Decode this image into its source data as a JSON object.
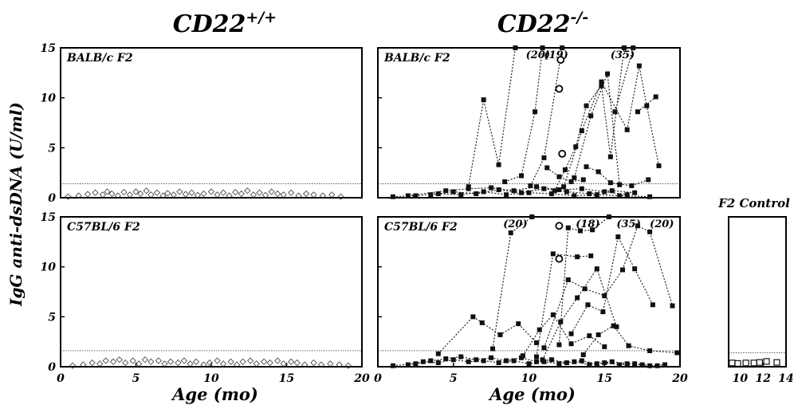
{
  "figure": {
    "col_titles": [
      {
        "base": "CD22",
        "sup": "+/+"
      },
      {
        "base": "CD22",
        "sup": "-/-"
      }
    ],
    "ylabel": "IgG anti-dsDNA (U/ml)",
    "xlabel": "Age (mo)",
    "control_title": "F2 Control"
  },
  "chart_data": [
    {
      "type": "scatter",
      "name": "wt-balbc",
      "panel_label": "BALB/c F2",
      "xlim": [
        0,
        20
      ],
      "ylim": [
        0,
        15
      ],
      "x_ticks": [],
      "y_ticks": [
        0,
        5,
        10,
        15
      ],
      "cutoff": 1.4,
      "marker": "open-diamond",
      "color": "#333333",
      "points": [
        [
          0.5,
          0.1
        ],
        [
          1.2,
          0.2
        ],
        [
          1.8,
          0.35
        ],
        [
          2.3,
          0.5
        ],
        [
          2.8,
          0.3
        ],
        [
          3.1,
          0.6
        ],
        [
          3.4,
          0.4
        ],
        [
          3.8,
          0.2
        ],
        [
          4.2,
          0.55
        ],
        [
          4.6,
          0.3
        ],
        [
          5.0,
          0.6
        ],
        [
          5.3,
          0.4
        ],
        [
          5.7,
          0.7
        ],
        [
          6.0,
          0.3
        ],
        [
          6.4,
          0.5
        ],
        [
          6.8,
          0.2
        ],
        [
          7.1,
          0.45
        ],
        [
          7.5,
          0.3
        ],
        [
          7.9,
          0.6
        ],
        [
          8.3,
          0.35
        ],
        [
          8.7,
          0.5
        ],
        [
          9.1,
          0.25
        ],
        [
          9.5,
          0.4
        ],
        [
          10.0,
          0.6
        ],
        [
          10.4,
          0.3
        ],
        [
          10.8,
          0.5
        ],
        [
          11.2,
          0.2
        ],
        [
          11.6,
          0.55
        ],
        [
          12.0,
          0.4
        ],
        [
          12.4,
          0.7
        ],
        [
          12.8,
          0.3
        ],
        [
          13.2,
          0.5
        ],
        [
          13.6,
          0.25
        ],
        [
          14.0,
          0.6
        ],
        [
          14.4,
          0.4
        ],
        [
          14.8,
          0.3
        ],
        [
          15.3,
          0.5
        ],
        [
          15.8,
          0.2
        ],
        [
          16.3,
          0.4
        ],
        [
          16.8,
          0.3
        ],
        [
          17.4,
          0.2
        ],
        [
          18.0,
          0.3
        ],
        [
          18.6,
          0.1
        ]
      ]
    },
    {
      "type": "line",
      "name": "ko-balbc",
      "panel_label": "BALB/c F2",
      "xlim": [
        0,
        20
      ],
      "ylim": [
        0,
        15
      ],
      "x_ticks": [],
      "y_ticks": [
        0,
        5,
        10,
        15
      ],
      "cutoff": 1.4,
      "marker": "filled-square",
      "color": "#111111",
      "offscale_labels": [
        {
          "x": 10.6,
          "text": "(20)"
        },
        {
          "x": 11.8,
          "text": "(19)"
        },
        {
          "x": 16.2,
          "text": "(35)"
        }
      ],
      "open_circles": [
        [
          12.1,
          13.8
        ],
        [
          12.0,
          10.9
        ],
        [
          12.2,
          4.4
        ]
      ],
      "series": [
        {
          "points": [
            [
              6.0,
              1.1
            ],
            [
              7.0,
              9.8
            ],
            [
              8.0,
              3.3
            ],
            [
              9.1,
              15.0
            ]
          ]
        },
        {
          "points": [
            [
              8.4,
              1.6
            ],
            [
              9.5,
              2.2
            ],
            [
              10.4,
              8.6
            ],
            [
              10.9,
              15.0
            ]
          ]
        },
        {
          "points": [
            [
              10.1,
              1.2
            ],
            [
              11.0,
              4.0
            ],
            [
              12.2,
              15.0
            ]
          ]
        },
        {
          "points": [
            [
              11.7,
              0.7
            ],
            [
              12.4,
              2.8
            ],
            [
              13.1,
              5.1
            ],
            [
              13.8,
              9.2
            ],
            [
              14.8,
              11.2
            ],
            [
              15.4,
              4.1
            ],
            [
              16.3,
              15.0
            ]
          ]
        },
        {
          "points": [
            [
              12.3,
              1.1
            ],
            [
              13.5,
              6.7
            ],
            [
              14.8,
              11.6
            ],
            [
              16.5,
              6.8
            ],
            [
              17.3,
              13.2
            ],
            [
              17.8,
              9.2
            ],
            [
              18.6,
              3.2
            ]
          ]
        },
        {
          "points": [
            [
              13.0,
              2.0
            ],
            [
              14.1,
              8.2
            ],
            [
              15.2,
              12.4
            ],
            [
              16.0,
              1.3
            ]
          ]
        },
        {
          "points": [
            [
              15.7,
              8.6
            ],
            [
              16.9,
              15.0
            ]
          ]
        },
        {
          "points": [
            [
              17.2,
              8.6
            ],
            [
              18.4,
              10.1
            ]
          ]
        },
        {
          "points": [
            [
              13.8,
              3.1
            ],
            [
              14.6,
              2.6
            ],
            [
              15.4,
              1.5
            ],
            [
              16.8,
              1.2
            ],
            [
              17.9,
              1.8
            ]
          ]
        },
        {
          "points": [
            [
              11.2,
              3.0
            ],
            [
              12.0,
              2.1
            ],
            [
              12.8,
              1.6
            ],
            [
              13.6,
              1.8
            ]
          ]
        },
        {
          "points": [
            [
              3.5,
              0.3
            ],
            [
              5.0,
              0.6
            ],
            [
              6.5,
              0.4
            ],
            [
              8.0,
              0.8
            ],
            [
              9.5,
              0.5
            ],
            [
              11.0,
              0.9
            ],
            [
              12.5,
              0.6
            ],
            [
              14.0,
              0.4
            ],
            [
              15.5,
              0.7
            ],
            [
              17.0,
              0.5
            ]
          ]
        },
        {
          "points": [
            [
              1.0,
              0.1
            ],
            [
              2.5,
              0.2
            ],
            [
              4.0,
              0.4
            ],
            [
              5.5,
              0.3
            ],
            [
              7.0,
              0.6
            ],
            [
              8.5,
              0.3
            ],
            [
              10.0,
              0.5
            ],
            [
              11.5,
              0.4
            ],
            [
              13.0,
              0.2
            ],
            [
              14.5,
              0.3
            ],
            [
              16.0,
              0.2
            ],
            [
              18.0,
              0.1
            ]
          ]
        },
        {
          "points": [
            [
              2.0,
              0.2
            ],
            [
              4.5,
              0.7
            ],
            [
              6.0,
              0.9
            ],
            [
              7.5,
              1.0
            ],
            [
              9.0,
              0.7
            ],
            [
              10.5,
              1.1
            ],
            [
              12.0,
              0.8
            ],
            [
              13.5,
              0.9
            ],
            [
              15.0,
              0.6
            ],
            [
              16.5,
              0.3
            ]
          ]
        }
      ]
    },
    {
      "type": "scatter",
      "name": "wt-b6",
      "panel_label": "C57BL/6 F2",
      "xlim": [
        0,
        20
      ],
      "ylim": [
        0,
        15
      ],
      "x_ticks": [
        0,
        5,
        10,
        15,
        20
      ],
      "y_ticks": [
        0,
        5,
        10,
        15
      ],
      "cutoff": 1.6,
      "marker": "open-diamond",
      "color": "#333333",
      "points": [
        [
          0.8,
          0.1
        ],
        [
          1.5,
          0.2
        ],
        [
          2.1,
          0.4
        ],
        [
          2.6,
          0.3
        ],
        [
          3.0,
          0.6
        ],
        [
          3.5,
          0.5
        ],
        [
          3.9,
          0.7
        ],
        [
          4.3,
          0.4
        ],
        [
          4.8,
          0.6
        ],
        [
          5.2,
          0.3
        ],
        [
          5.6,
          0.7
        ],
        [
          6.0,
          0.5
        ],
        [
          6.5,
          0.6
        ],
        [
          6.9,
          0.3
        ],
        [
          7.3,
          0.5
        ],
        [
          7.8,
          0.4
        ],
        [
          8.2,
          0.6
        ],
        [
          8.6,
          0.3
        ],
        [
          9.0,
          0.5
        ],
        [
          9.5,
          0.2
        ],
        [
          9.9,
          0.4
        ],
        [
          10.4,
          0.6
        ],
        [
          10.8,
          0.3
        ],
        [
          11.3,
          0.5
        ],
        [
          11.7,
          0.2
        ],
        [
          12.1,
          0.5
        ],
        [
          12.6,
          0.6
        ],
        [
          13.0,
          0.3
        ],
        [
          13.5,
          0.5
        ],
        [
          13.9,
          0.4
        ],
        [
          14.4,
          0.6
        ],
        [
          14.8,
          0.3
        ],
        [
          15.3,
          0.5
        ],
        [
          15.7,
          0.4
        ],
        [
          16.2,
          0.2
        ],
        [
          16.8,
          0.4
        ],
        [
          17.3,
          0.2
        ],
        [
          17.9,
          0.3
        ],
        [
          18.5,
          0.2
        ],
        [
          19.1,
          0.1
        ]
      ]
    },
    {
      "type": "line",
      "name": "ko-b6",
      "panel_label": "C57BL/6 F2",
      "xlim": [
        0,
        20
      ],
      "ylim": [
        0,
        15
      ],
      "x_ticks": [
        0,
        5,
        10,
        15,
        20
      ],
      "y_ticks": [
        0,
        5,
        10,
        15
      ],
      "cutoff": 1.6,
      "marker": "filled-square",
      "color": "#111111",
      "offscale_labels": [
        {
          "x": 9.1,
          "text": "(20)"
        },
        {
          "x": 13.9,
          "text": "(18)"
        },
        {
          "x": 16.6,
          "text": "(35)"
        },
        {
          "x": 18.8,
          "text": "(20)"
        }
      ],
      "open_circles": [
        [
          12.0,
          14.1
        ],
        [
          12.0,
          10.8
        ]
      ],
      "series": [
        {
          "points": [
            [
              7.6,
              1.8
            ],
            [
              8.8,
              13.4
            ],
            [
              10.2,
              15.0
            ]
          ]
        },
        {
          "points": [
            [
              10.5,
              1.0
            ],
            [
              11.6,
              11.3
            ],
            [
              13.2,
              11.0
            ],
            [
              14.1,
              11.1
            ]
          ]
        },
        {
          "points": [
            [
              12.0,
              2.2
            ],
            [
              12.6,
              13.9
            ],
            [
              13.4,
              13.6
            ],
            [
              14.2,
              13.7
            ],
            [
              15.3,
              15.0
            ]
          ]
        },
        {
          "points": [
            [
              4.0,
              1.3
            ],
            [
              6.3,
              5.0
            ],
            [
              6.9,
              4.4
            ],
            [
              8.1,
              3.2
            ],
            [
              9.3,
              4.3
            ],
            [
              10.5,
              2.4
            ]
          ]
        },
        {
          "points": [
            [
              11.0,
              1.9
            ],
            [
              12.6,
              8.7
            ],
            [
              13.7,
              7.8
            ],
            [
              15.0,
              7.1
            ],
            [
              16.2,
              9.7
            ],
            [
              17.2,
              14.1
            ],
            [
              18.0,
              13.5
            ],
            [
              19.5,
              6.1
            ]
          ]
        },
        {
          "points": [
            [
              12.8,
              3.3
            ],
            [
              13.9,
              6.2
            ],
            [
              14.9,
              5.5
            ],
            [
              15.9,
              13.0
            ],
            [
              17.0,
              9.8
            ],
            [
              18.2,
              6.2
            ]
          ]
        },
        {
          "points": [
            [
              10.9,
              0.7
            ],
            [
              12.1,
              4.5
            ],
            [
              13.2,
              6.9
            ],
            [
              14.5,
              9.8
            ],
            [
              15.8,
              4.0
            ]
          ]
        },
        {
          "points": [
            [
              9.6,
              1.1
            ],
            [
              10.7,
              3.7
            ],
            [
              11.6,
              5.2
            ],
            [
              12.8,
              2.3
            ],
            [
              14.0,
              3.1
            ],
            [
              15.0,
              2.0
            ]
          ]
        },
        {
          "points": [
            [
              13.6,
              1.2
            ],
            [
              14.6,
              3.2
            ],
            [
              15.6,
              4.1
            ],
            [
              16.6,
              2.1
            ],
            [
              18.0,
              1.6
            ],
            [
              19.8,
              1.4
            ]
          ]
        },
        {
          "points": [
            [
              1.0,
              0.1
            ],
            [
              2.5,
              0.3
            ],
            [
              3.5,
              0.6
            ],
            [
              4.5,
              0.8
            ],
            [
              5.5,
              1.0
            ],
            [
              6.5,
              0.7
            ],
            [
              7.5,
              0.9
            ],
            [
              8.5,
              0.6
            ],
            [
              9.5,
              0.9
            ],
            [
              10.5,
              0.5
            ],
            [
              11.5,
              0.7
            ],
            [
              12.5,
              0.4
            ],
            [
              13.5,
              0.6
            ],
            [
              14.5,
              0.3
            ],
            [
              15.5,
              0.5
            ],
            [
              16.5,
              0.3
            ],
            [
              17.5,
              0.2
            ],
            [
              18.5,
              0.1
            ]
          ]
        },
        {
          "points": [
            [
              2.0,
              0.2
            ],
            [
              3.0,
              0.5
            ],
            [
              4.0,
              0.4
            ],
            [
              5.0,
              0.7
            ],
            [
              6.0,
              0.5
            ],
            [
              7.0,
              0.6
            ],
            [
              8.0,
              0.4
            ],
            [
              9.0,
              0.6
            ],
            [
              10.0,
              0.3
            ],
            [
              11.0,
              0.5
            ],
            [
              12.0,
              0.3
            ],
            [
              13.0,
              0.5
            ],
            [
              14.0,
              0.2
            ],
            [
              15.0,
              0.4
            ],
            [
              16.0,
              0.2
            ],
            [
              17.0,
              0.3
            ],
            [
              18.0,
              0.1
            ],
            [
              19.0,
              0.2
            ]
          ]
        }
      ]
    },
    {
      "type": "scatter",
      "name": "control",
      "xlim": [
        9,
        14
      ],
      "ylim": [
        0,
        15
      ],
      "x_ticks": [
        10,
        12,
        14
      ],
      "y_ticks": [],
      "cutoff": 1.4,
      "marker": "open-square",
      "color": "#111111",
      "points": [
        [
          9.3,
          0.1
        ],
        [
          9.8,
          0.05
        ],
        [
          10.5,
          0.1
        ],
        [
          11.2,
          0.1
        ],
        [
          11.7,
          0.15
        ],
        [
          12.3,
          0.25
        ],
        [
          13.2,
          0.15
        ]
      ]
    }
  ]
}
